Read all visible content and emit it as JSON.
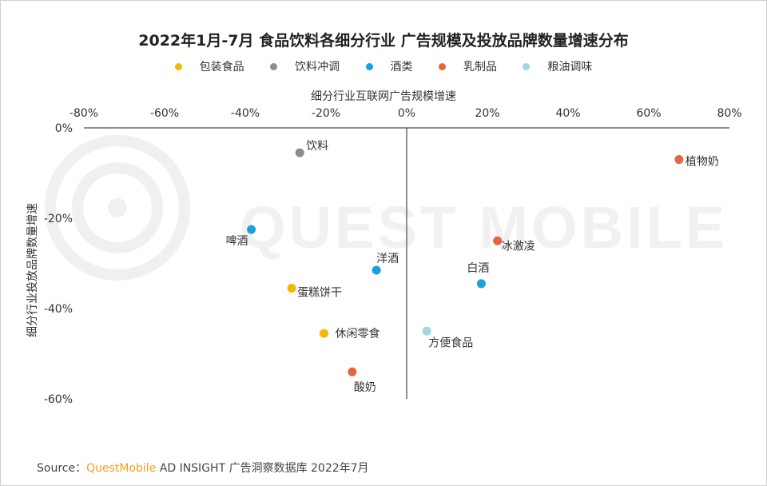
{
  "title": "2022年1月-7月 食品饮料各细分行业 广告规模及投放品牌数量增速分布",
  "legend": [
    {
      "label": "包装食品",
      "color": "#f5b800"
    },
    {
      "label": "饮料冲调",
      "color": "#8c8c8c"
    },
    {
      "label": "酒类",
      "color": "#1aa0dc"
    },
    {
      "label": "乳制品",
      "color": "#e8643c"
    },
    {
      "label": "粮油调味",
      "color": "#9ed8dc"
    }
  ],
  "watermark": "QUEST MOBILE",
  "source": {
    "prefix": "Source：",
    "brand": "QuestMobile",
    "rest": " AD INSIGHT 广告洞察数据库 2022年7月"
  },
  "chart_data": {
    "type": "scatter",
    "title": "2022年1月-7月 食品饮料各细分行业 广告规模及投放品牌数量增速分布",
    "xlabel": "细分行业互联网广告规模增速",
    "ylabel": "细分行业投放品牌数量增速",
    "xlim": [
      -80,
      80
    ],
    "ylim": [
      -60,
      0
    ],
    "x_ticks": [
      "-80%",
      "-60%",
      "-40%",
      "-20%",
      "0%",
      "20%",
      "40%",
      "60%",
      "80%"
    ],
    "y_ticks": [
      "0%",
      "-20%",
      "-40%",
      "-60%"
    ],
    "x_axis_position": "top",
    "legend_position": "top",
    "grid": false,
    "series": [
      {
        "name": "包装食品",
        "color": "#f5b800",
        "points": [
          {
            "label": "蛋糕饼干",
            "x": -28.5,
            "y": -35.5
          },
          {
            "label": "休闲零食",
            "x": -20.5,
            "y": -45.5
          }
        ]
      },
      {
        "name": "饮料冲调",
        "color": "#8c8c8c",
        "points": [
          {
            "label": "饮料",
            "x": -26.5,
            "y": -5.5
          }
        ]
      },
      {
        "name": "酒类",
        "color": "#1aa0dc",
        "points": [
          {
            "label": "啤酒",
            "x": -38.5,
            "y": -22.5
          },
          {
            "label": "洋酒",
            "x": -7.5,
            "y": -31.5
          },
          {
            "label": "白酒",
            "x": 18.5,
            "y": -34.5
          }
        ]
      },
      {
        "name": "乳制品",
        "color": "#e8643c",
        "points": [
          {
            "label": "植物奶",
            "x": 67.5,
            "y": -7.0
          },
          {
            "label": "冰激凌",
            "x": 22.5,
            "y": -25.0
          },
          {
            "label": "酸奶",
            "x": -13.5,
            "y": -54.0
          }
        ]
      },
      {
        "name": "粮油调味",
        "color": "#9ed8dc",
        "points": [
          {
            "label": "方便食品",
            "x": 5.0,
            "y": -45.0
          }
        ]
      }
    ]
  }
}
